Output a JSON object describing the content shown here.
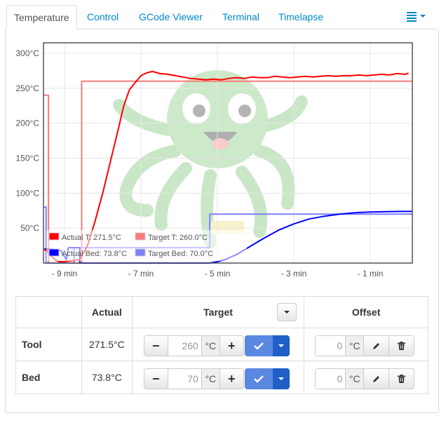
{
  "tabs": [
    {
      "label": "Temperature",
      "active": true
    },
    {
      "label": "Control",
      "active": false
    },
    {
      "label": "GCode Viewer",
      "active": false
    },
    {
      "label": "Terminal",
      "active": false
    },
    {
      "label": "Timelapse",
      "active": false
    }
  ],
  "tab_menu_icon": "list-menu-icon",
  "chart_data": {
    "type": "line",
    "x_unit": "min",
    "xlim": [
      -9.55,
      0.1
    ],
    "ylim": [
      0,
      315
    ],
    "xticks": [
      {
        "value": -9,
        "label": "- 9 min"
      },
      {
        "value": -7,
        "label": "- 7 min"
      },
      {
        "value": -5,
        "label": "- 5 min"
      },
      {
        "value": -3,
        "label": "- 3 min"
      },
      {
        "value": -1,
        "label": "- 1 min"
      }
    ],
    "yticks": [
      {
        "value": 50,
        "label": "50°C"
      },
      {
        "value": 100,
        "label": "100°C"
      },
      {
        "value": 150,
        "label": "150°C"
      },
      {
        "value": 200,
        "label": "200°C"
      },
      {
        "value": 250,
        "label": "250°C"
      },
      {
        "value": 300,
        "label": "300°C"
      }
    ],
    "grid": true,
    "legend_position": "bottom-left",
    "series": [
      {
        "name": "Actual T: 271.5°C",
        "color": "#ff0000",
        "points": [
          [
            -9.55,
            20
          ],
          [
            -9.45,
            17
          ],
          [
            -9.35,
            10
          ],
          [
            -9.25,
            5
          ],
          [
            -9.15,
            2
          ],
          [
            -9.0,
            2
          ],
          [
            -8.85,
            3
          ],
          [
            -8.6,
            5
          ],
          [
            -8.4,
            25
          ],
          [
            -8.2,
            60
          ],
          [
            -8.0,
            100
          ],
          [
            -7.8,
            145
          ],
          [
            -7.6,
            190
          ],
          [
            -7.45,
            225
          ],
          [
            -7.3,
            248
          ],
          [
            -7.15,
            258
          ],
          [
            -7.0,
            268
          ],
          [
            -6.85,
            272
          ],
          [
            -6.7,
            274
          ],
          [
            -6.5,
            271
          ],
          [
            -6.3,
            270
          ],
          [
            -6.1,
            268
          ],
          [
            -5.9,
            266
          ],
          [
            -5.7,
            264
          ],
          [
            -5.5,
            263
          ],
          [
            -5.3,
            262
          ],
          [
            -5.1,
            263
          ],
          [
            -4.9,
            262
          ],
          [
            -4.7,
            264
          ],
          [
            -4.5,
            265
          ],
          [
            -4.3,
            264
          ],
          [
            -4.1,
            266
          ],
          [
            -3.9,
            265
          ],
          [
            -3.7,
            265
          ],
          [
            -3.5,
            267
          ],
          [
            -3.3,
            266
          ],
          [
            -3.1,
            265
          ],
          [
            -2.9,
            266
          ],
          [
            -2.7,
            267
          ],
          [
            -2.5,
            266
          ],
          [
            -2.3,
            267
          ],
          [
            -2.1,
            268
          ],
          [
            -1.9,
            267
          ],
          [
            -1.7,
            268
          ],
          [
            -1.5,
            268
          ],
          [
            -1.3,
            269
          ],
          [
            -1.1,
            268
          ],
          [
            -0.9,
            269
          ],
          [
            -0.7,
            270
          ],
          [
            -0.5,
            269
          ],
          [
            -0.3,
            271
          ],
          [
            -0.1,
            270
          ],
          [
            0.0,
            271.5
          ]
        ]
      },
      {
        "name": "Target T: 260.0°C",
        "color": "#ff7a7a",
        "points": [
          [
            -9.55,
            240
          ],
          [
            -9.42,
            240
          ],
          [
            -9.42,
            0
          ],
          [
            -8.55,
            0
          ],
          [
            -8.55,
            260
          ],
          [
            0.1,
            260
          ]
        ]
      },
      {
        "name": "Actual Bed: 73.8°C",
        "color": "#0000ff",
        "points": [
          [
            -9.55,
            20
          ],
          [
            -9.3,
            20
          ],
          [
            -9.1,
            18
          ],
          [
            -8.95,
            5
          ],
          [
            -8.9,
            22
          ],
          [
            -8.6,
            22
          ],
          [
            -8.6,
            0
          ],
          [
            -5.2,
            0
          ],
          [
            -5.0,
            2
          ],
          [
            -4.8,
            5
          ],
          [
            -4.5,
            12
          ],
          [
            -4.2,
            22
          ],
          [
            -3.8,
            35
          ],
          [
            -3.4,
            47
          ],
          [
            -3.0,
            56
          ],
          [
            -2.6,
            63
          ],
          [
            -2.2,
            67
          ],
          [
            -1.8,
            70
          ],
          [
            -1.4,
            72
          ],
          [
            -1.0,
            73
          ],
          [
            -0.6,
            73.5
          ],
          [
            -0.2,
            73.8
          ],
          [
            0.1,
            73.8
          ]
        ]
      },
      {
        "name": "Target Bed: 70.0°C",
        "color": "#7f7fff",
        "points": [
          [
            -9.55,
            80
          ],
          [
            -9.48,
            80
          ],
          [
            -9.48,
            0
          ],
          [
            -8.75,
            0
          ],
          [
            -8.75,
            22
          ],
          [
            -5.2,
            22
          ],
          [
            -5.2,
            70
          ],
          [
            0.1,
            70
          ]
        ]
      }
    ]
  },
  "controls_table": {
    "headers": {
      "actual": "Actual",
      "target": "Target",
      "offset": "Offset"
    },
    "rows": [
      {
        "label": "Tool",
        "actual": "271.5°C",
        "target": "260",
        "offset": "0"
      },
      {
        "label": "Bed",
        "actual": "73.8°C",
        "target": "70",
        "offset": "0"
      }
    ],
    "unit": "°C",
    "minus": "−",
    "plus": "+",
    "icons": {
      "set": "check-icon",
      "edit": "pencil-icon",
      "reset": "trash-icon"
    }
  }
}
